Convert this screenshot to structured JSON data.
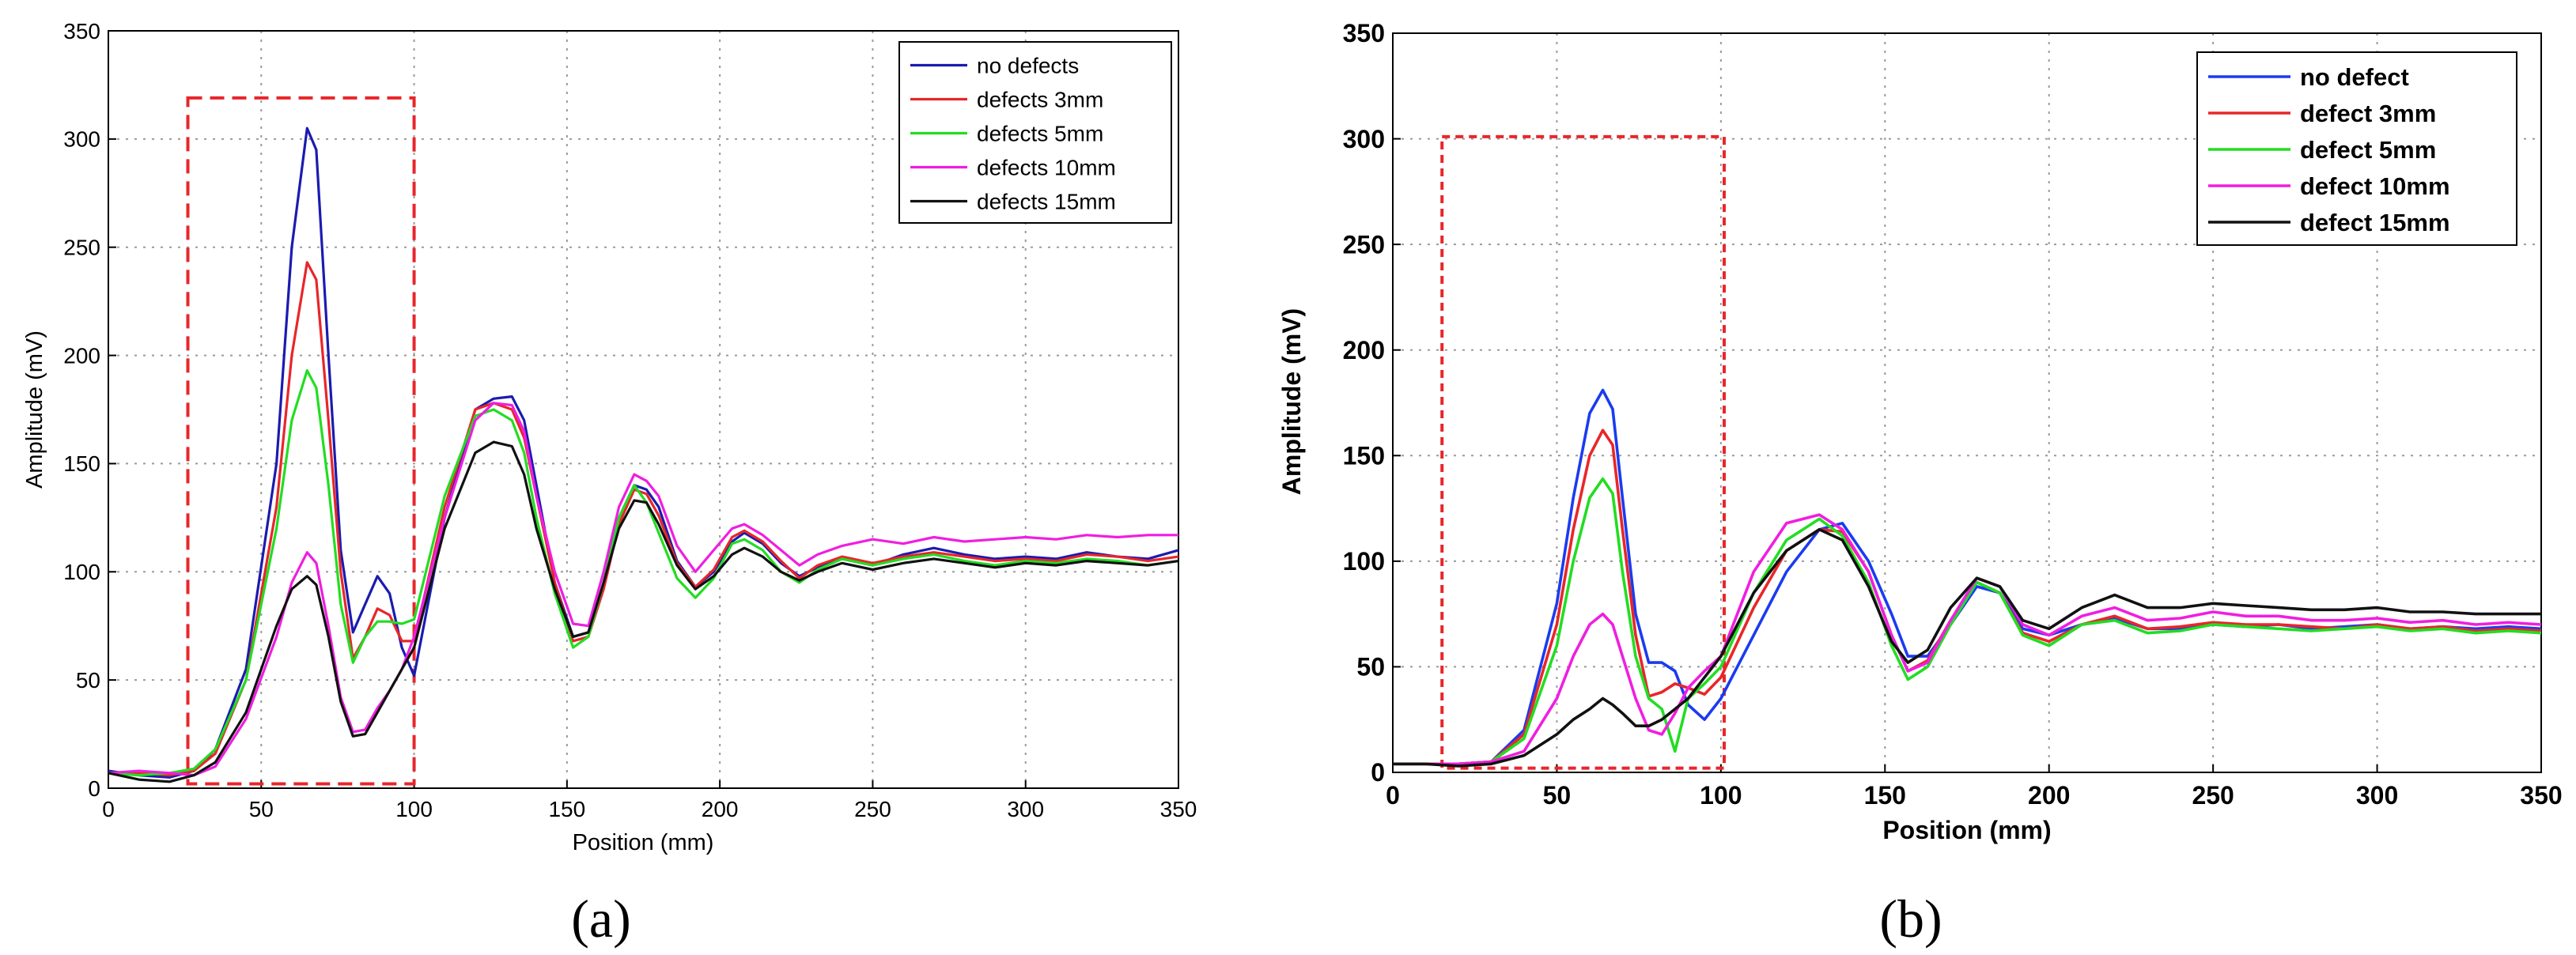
{
  "chart_data": [
    {
      "id": "a",
      "type": "line",
      "panel_label": "(a)",
      "xlabel": "Position (mm)",
      "ylabel": "Amplitude (mV)",
      "xlim": [
        0,
        350
      ],
      "ylim": [
        0,
        350
      ],
      "xticks": [
        0,
        50,
        100,
        150,
        200,
        250,
        300,
        350
      ],
      "yticks": [
        0,
        50,
        100,
        150,
        200,
        250,
        300,
        350
      ],
      "grid": true,
      "legend_position": "top-right",
      "highlight_box": {
        "x": [
          26,
          100
        ],
        "y": [
          2,
          319
        ],
        "style": "dashed",
        "color": "#e8262a"
      },
      "series": [
        {
          "name": "no defects",
          "color": "#1b1bb0",
          "x": [
            0,
            10,
            20,
            28,
            35,
            45,
            55,
            60,
            65,
            68,
            72,
            76,
            80,
            84,
            88,
            92,
            96,
            100,
            110,
            120,
            126,
            132,
            136,
            140,
            146,
            152,
            157,
            162,
            167,
            172,
            176,
            180,
            186,
            192,
            198,
            204,
            208,
            214,
            220,
            226,
            232,
            240,
            250,
            260,
            270,
            280,
            290,
            300,
            310,
            320,
            330,
            340,
            350
          ],
          "y": [
            8,
            6,
            5,
            8,
            18,
            55,
            150,
            250,
            305,
            295,
            200,
            110,
            72,
            85,
            98,
            90,
            65,
            52,
            125,
            175,
            180,
            181,
            170,
            140,
            95,
            70,
            72,
            95,
            125,
            140,
            138,
            130,
            105,
            93,
            100,
            114,
            118,
            113,
            104,
            98,
            102,
            106,
            103,
            108,
            111,
            108,
            106,
            107,
            106,
            109,
            107,
            106,
            110
          ]
        },
        {
          "name": "defects 3mm",
          "color": "#e8262a",
          "x": [
            0,
            10,
            20,
            28,
            35,
            45,
            55,
            60,
            65,
            68,
            72,
            76,
            80,
            84,
            88,
            92,
            96,
            100,
            110,
            120,
            126,
            132,
            136,
            140,
            146,
            152,
            157,
            162,
            167,
            172,
            176,
            180,
            186,
            192,
            198,
            204,
            208,
            214,
            220,
            226,
            232,
            240,
            250,
            260,
            270,
            280,
            290,
            300,
            310,
            320,
            330,
            340,
            350
          ],
          "y": [
            7,
            7,
            6,
            8,
            16,
            50,
            130,
            200,
            243,
            235,
            170,
            100,
            60,
            70,
            83,
            80,
            68,
            68,
            130,
            175,
            178,
            175,
            162,
            135,
            95,
            68,
            70,
            92,
            122,
            138,
            136,
            126,
            104,
            93,
            101,
            116,
            119,
            114,
            105,
            97,
            103,
            107,
            104,
            107,
            109,
            107,
            105,
            106,
            105,
            108,
            107,
            105,
            107
          ]
        },
        {
          "name": "defects 5mm",
          "color": "#22dd22",
          "x": [
            0,
            10,
            20,
            28,
            35,
            45,
            55,
            60,
            65,
            68,
            72,
            76,
            80,
            84,
            88,
            92,
            96,
            100,
            110,
            120,
            126,
            132,
            136,
            140,
            146,
            152,
            157,
            162,
            167,
            172,
            176,
            180,
            186,
            192,
            198,
            204,
            208,
            214,
            220,
            226,
            232,
            240,
            250,
            260,
            270,
            280,
            290,
            300,
            310,
            320,
            330,
            340,
            350
          ],
          "y": [
            7,
            6,
            7,
            9,
            18,
            50,
            120,
            170,
            193,
            185,
            140,
            85,
            58,
            70,
            77,
            77,
            76,
            78,
            135,
            172,
            175,
            170,
            155,
            125,
            90,
            65,
            70,
            95,
            125,
            140,
            132,
            118,
            97,
            88,
            97,
            113,
            115,
            110,
            100,
            95,
            101,
            106,
            103,
            106,
            108,
            105,
            103,
            105,
            104,
            106,
            105,
            103,
            105
          ]
        },
        {
          "name": "defects 10mm",
          "color": "#f01ee0",
          "x": [
            0,
            10,
            20,
            28,
            35,
            45,
            55,
            60,
            65,
            68,
            72,
            76,
            80,
            84,
            88,
            92,
            96,
            100,
            110,
            120,
            126,
            132,
            136,
            140,
            146,
            152,
            157,
            162,
            167,
            172,
            176,
            180,
            186,
            192,
            198,
            204,
            208,
            214,
            220,
            226,
            232,
            240,
            250,
            260,
            270,
            280,
            290,
            300,
            310,
            320,
            330,
            340,
            350
          ],
          "y": [
            7,
            8,
            7,
            6,
            10,
            32,
            70,
            95,
            109,
            104,
            75,
            42,
            26,
            27,
            37,
            45,
            55,
            70,
            125,
            170,
            178,
            177,
            165,
            135,
            100,
            76,
            75,
            100,
            130,
            145,
            142,
            135,
            112,
            100,
            110,
            120,
            122,
            117,
            110,
            103,
            108,
            112,
            115,
            113,
            116,
            114,
            115,
            116,
            115,
            117,
            116,
            117,
            117
          ]
        },
        {
          "name": "defects 15mm",
          "color": "#111111",
          "x": [
            0,
            10,
            20,
            28,
            35,
            45,
            55,
            60,
            65,
            68,
            72,
            76,
            80,
            84,
            88,
            92,
            96,
            100,
            110,
            120,
            126,
            132,
            136,
            140,
            146,
            152,
            157,
            162,
            167,
            172,
            176,
            180,
            186,
            192,
            198,
            204,
            208,
            214,
            220,
            226,
            232,
            240,
            250,
            260,
            270,
            280,
            290,
            300,
            310,
            320,
            330,
            340,
            350
          ],
          "y": [
            7,
            4,
            3,
            6,
            12,
            35,
            75,
            92,
            98,
            94,
            70,
            40,
            24,
            25,
            35,
            45,
            55,
            65,
            120,
            155,
            160,
            158,
            145,
            120,
            92,
            70,
            72,
            95,
            120,
            133,
            132,
            122,
            103,
            92,
            98,
            108,
            111,
            107,
            100,
            96,
            100,
            104,
            101,
            104,
            106,
            104,
            102,
            104,
            103,
            105,
            104,
            103,
            105
          ]
        }
      ]
    },
    {
      "id": "b",
      "type": "line",
      "panel_label": "(b)",
      "xlabel": "Position (mm)",
      "ylabel": "Amplitude (mV)",
      "xlim": [
        0,
        350
      ],
      "ylim": [
        0,
        350
      ],
      "xticks": [
        0,
        50,
        100,
        150,
        200,
        250,
        300,
        350
      ],
      "yticks": [
        0,
        50,
        100,
        150,
        200,
        250,
        300,
        350
      ],
      "grid": true,
      "legend_position": "top-right",
      "highlight_box": {
        "x": [
          15,
          101
        ],
        "y": [
          2,
          301
        ],
        "style": "dashed",
        "color": "#e8262a"
      },
      "series": [
        {
          "name": "no defect",
          "color": "#1b3bf0",
          "x": [
            0,
            10,
            20,
            30,
            40,
            50,
            55,
            60,
            64,
            67,
            70,
            74,
            78,
            82,
            86,
            90,
            95,
            100,
            110,
            120,
            130,
            137,
            145,
            152,
            157,
            163,
            170,
            178,
            185,
            192,
            200,
            210,
            220,
            230,
            240,
            250,
            260,
            270,
            280,
            290,
            300,
            310,
            320,
            330,
            340,
            350
          ],
          "y": [
            4,
            4,
            4,
            5,
            20,
            80,
            130,
            170,
            181,
            172,
            130,
            75,
            52,
            52,
            48,
            32,
            25,
            35,
            65,
            95,
            115,
            118,
            100,
            75,
            55,
            55,
            70,
            88,
            85,
            68,
            65,
            70,
            73,
            68,
            68,
            70,
            69,
            70,
            68,
            69,
            70,
            68,
            69,
            68,
            69,
            68
          ]
        },
        {
          "name": "defect 3mm",
          "color": "#e8262a",
          "x": [
            0,
            10,
            20,
            30,
            40,
            50,
            55,
            60,
            64,
            67,
            70,
            74,
            78,
            82,
            86,
            90,
            95,
            100,
            110,
            120,
            130,
            137,
            145,
            152,
            157,
            163,
            170,
            178,
            185,
            192,
            200,
            210,
            220,
            230,
            240,
            250,
            260,
            270,
            280,
            290,
            300,
            310,
            320,
            330,
            340,
            350
          ],
          "y": [
            4,
            4,
            4,
            5,
            18,
            70,
            115,
            150,
            162,
            155,
            115,
            65,
            36,
            38,
            42,
            40,
            37,
            45,
            78,
            105,
            115,
            114,
            95,
            65,
            48,
            53,
            72,
            90,
            85,
            66,
            62,
            70,
            74,
            68,
            69,
            71,
            70,
            70,
            69,
            68,
            70,
            68,
            69,
            67,
            68,
            67
          ]
        },
        {
          "name": "defect 5mm",
          "color": "#22dd22",
          "x": [
            0,
            10,
            20,
            30,
            40,
            50,
            55,
            60,
            64,
            67,
            70,
            74,
            78,
            82,
            86,
            90,
            95,
            100,
            110,
            120,
            130,
            137,
            145,
            152,
            157,
            163,
            170,
            178,
            185,
            192,
            200,
            210,
            220,
            230,
            240,
            250,
            260,
            270,
            280,
            290,
            300,
            310,
            320,
            330,
            340,
            350
          ],
          "y": [
            4,
            4,
            4,
            5,
            16,
            60,
            100,
            130,
            139,
            132,
            95,
            55,
            35,
            30,
            10,
            35,
            42,
            50,
            85,
            110,
            120,
            112,
            90,
            60,
            44,
            50,
            70,
            90,
            85,
            65,
            60,
            70,
            72,
            66,
            67,
            70,
            69,
            68,
            67,
            68,
            69,
            67,
            68,
            66,
            67,
            66
          ]
        },
        {
          "name": "defect 10mm",
          "color": "#f01ee0",
          "x": [
            0,
            10,
            20,
            30,
            40,
            50,
            55,
            60,
            64,
            67,
            70,
            74,
            78,
            82,
            86,
            90,
            95,
            100,
            110,
            120,
            130,
            137,
            145,
            152,
            157,
            163,
            170,
            178,
            185,
            192,
            200,
            210,
            220,
            230,
            240,
            250,
            260,
            270,
            280,
            290,
            300,
            310,
            320,
            330,
            340,
            350
          ],
          "y": [
            4,
            4,
            4,
            5,
            10,
            35,
            55,
            70,
            75,
            70,
            55,
            35,
            20,
            18,
            28,
            40,
            48,
            55,
            95,
            118,
            122,
            115,
            95,
            65,
            48,
            52,
            72,
            92,
            88,
            70,
            65,
            74,
            78,
            72,
            73,
            76,
            74,
            74,
            72,
            72,
            73,
            71,
            72,
            70,
            71,
            70
          ]
        },
        {
          "name": "defect 15mm",
          "color": "#111111",
          "x": [
            0,
            10,
            20,
            30,
            40,
            50,
            55,
            60,
            64,
            67,
            70,
            74,
            78,
            82,
            86,
            90,
            95,
            100,
            110,
            120,
            130,
            137,
            145,
            152,
            157,
            163,
            170,
            178,
            185,
            192,
            200,
            210,
            220,
            230,
            240,
            250,
            260,
            270,
            280,
            290,
            300,
            310,
            320,
            330,
            340,
            350
          ],
          "y": [
            4,
            4,
            3,
            4,
            8,
            18,
            25,
            30,
            35,
            32,
            28,
            22,
            22,
            25,
            30,
            35,
            45,
            55,
            85,
            105,
            115,
            110,
            88,
            62,
            52,
            58,
            78,
            92,
            88,
            72,
            68,
            78,
            84,
            78,
            78,
            80,
            79,
            78,
            77,
            77,
            78,
            76,
            76,
            75,
            75,
            75
          ]
        }
      ]
    }
  ]
}
